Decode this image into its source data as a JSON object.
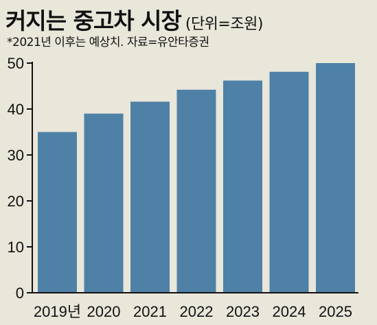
{
  "header": {
    "title": "커지는 중고차 시장",
    "unit": "(단위=조원)",
    "note": "*2021년 이후는 예상치. 자료=유안타증권"
  },
  "colors": {
    "background": "#e9e6da",
    "bar": "#4f81a6",
    "axis": "#111111"
  },
  "chart_data": {
    "type": "bar",
    "title": "커지는 중고차 시장",
    "unit": "조원",
    "categories": [
      "2019년",
      "2020",
      "2021",
      "2022",
      "2023",
      "2024",
      "2025"
    ],
    "values": [
      35,
      39,
      41.6,
      44.2,
      46.2,
      48.1,
      50
    ],
    "ylim": [
      0,
      50
    ],
    "yticks": [
      0,
      10,
      20,
      30,
      40,
      50
    ],
    "grid": false,
    "legend": "none"
  }
}
